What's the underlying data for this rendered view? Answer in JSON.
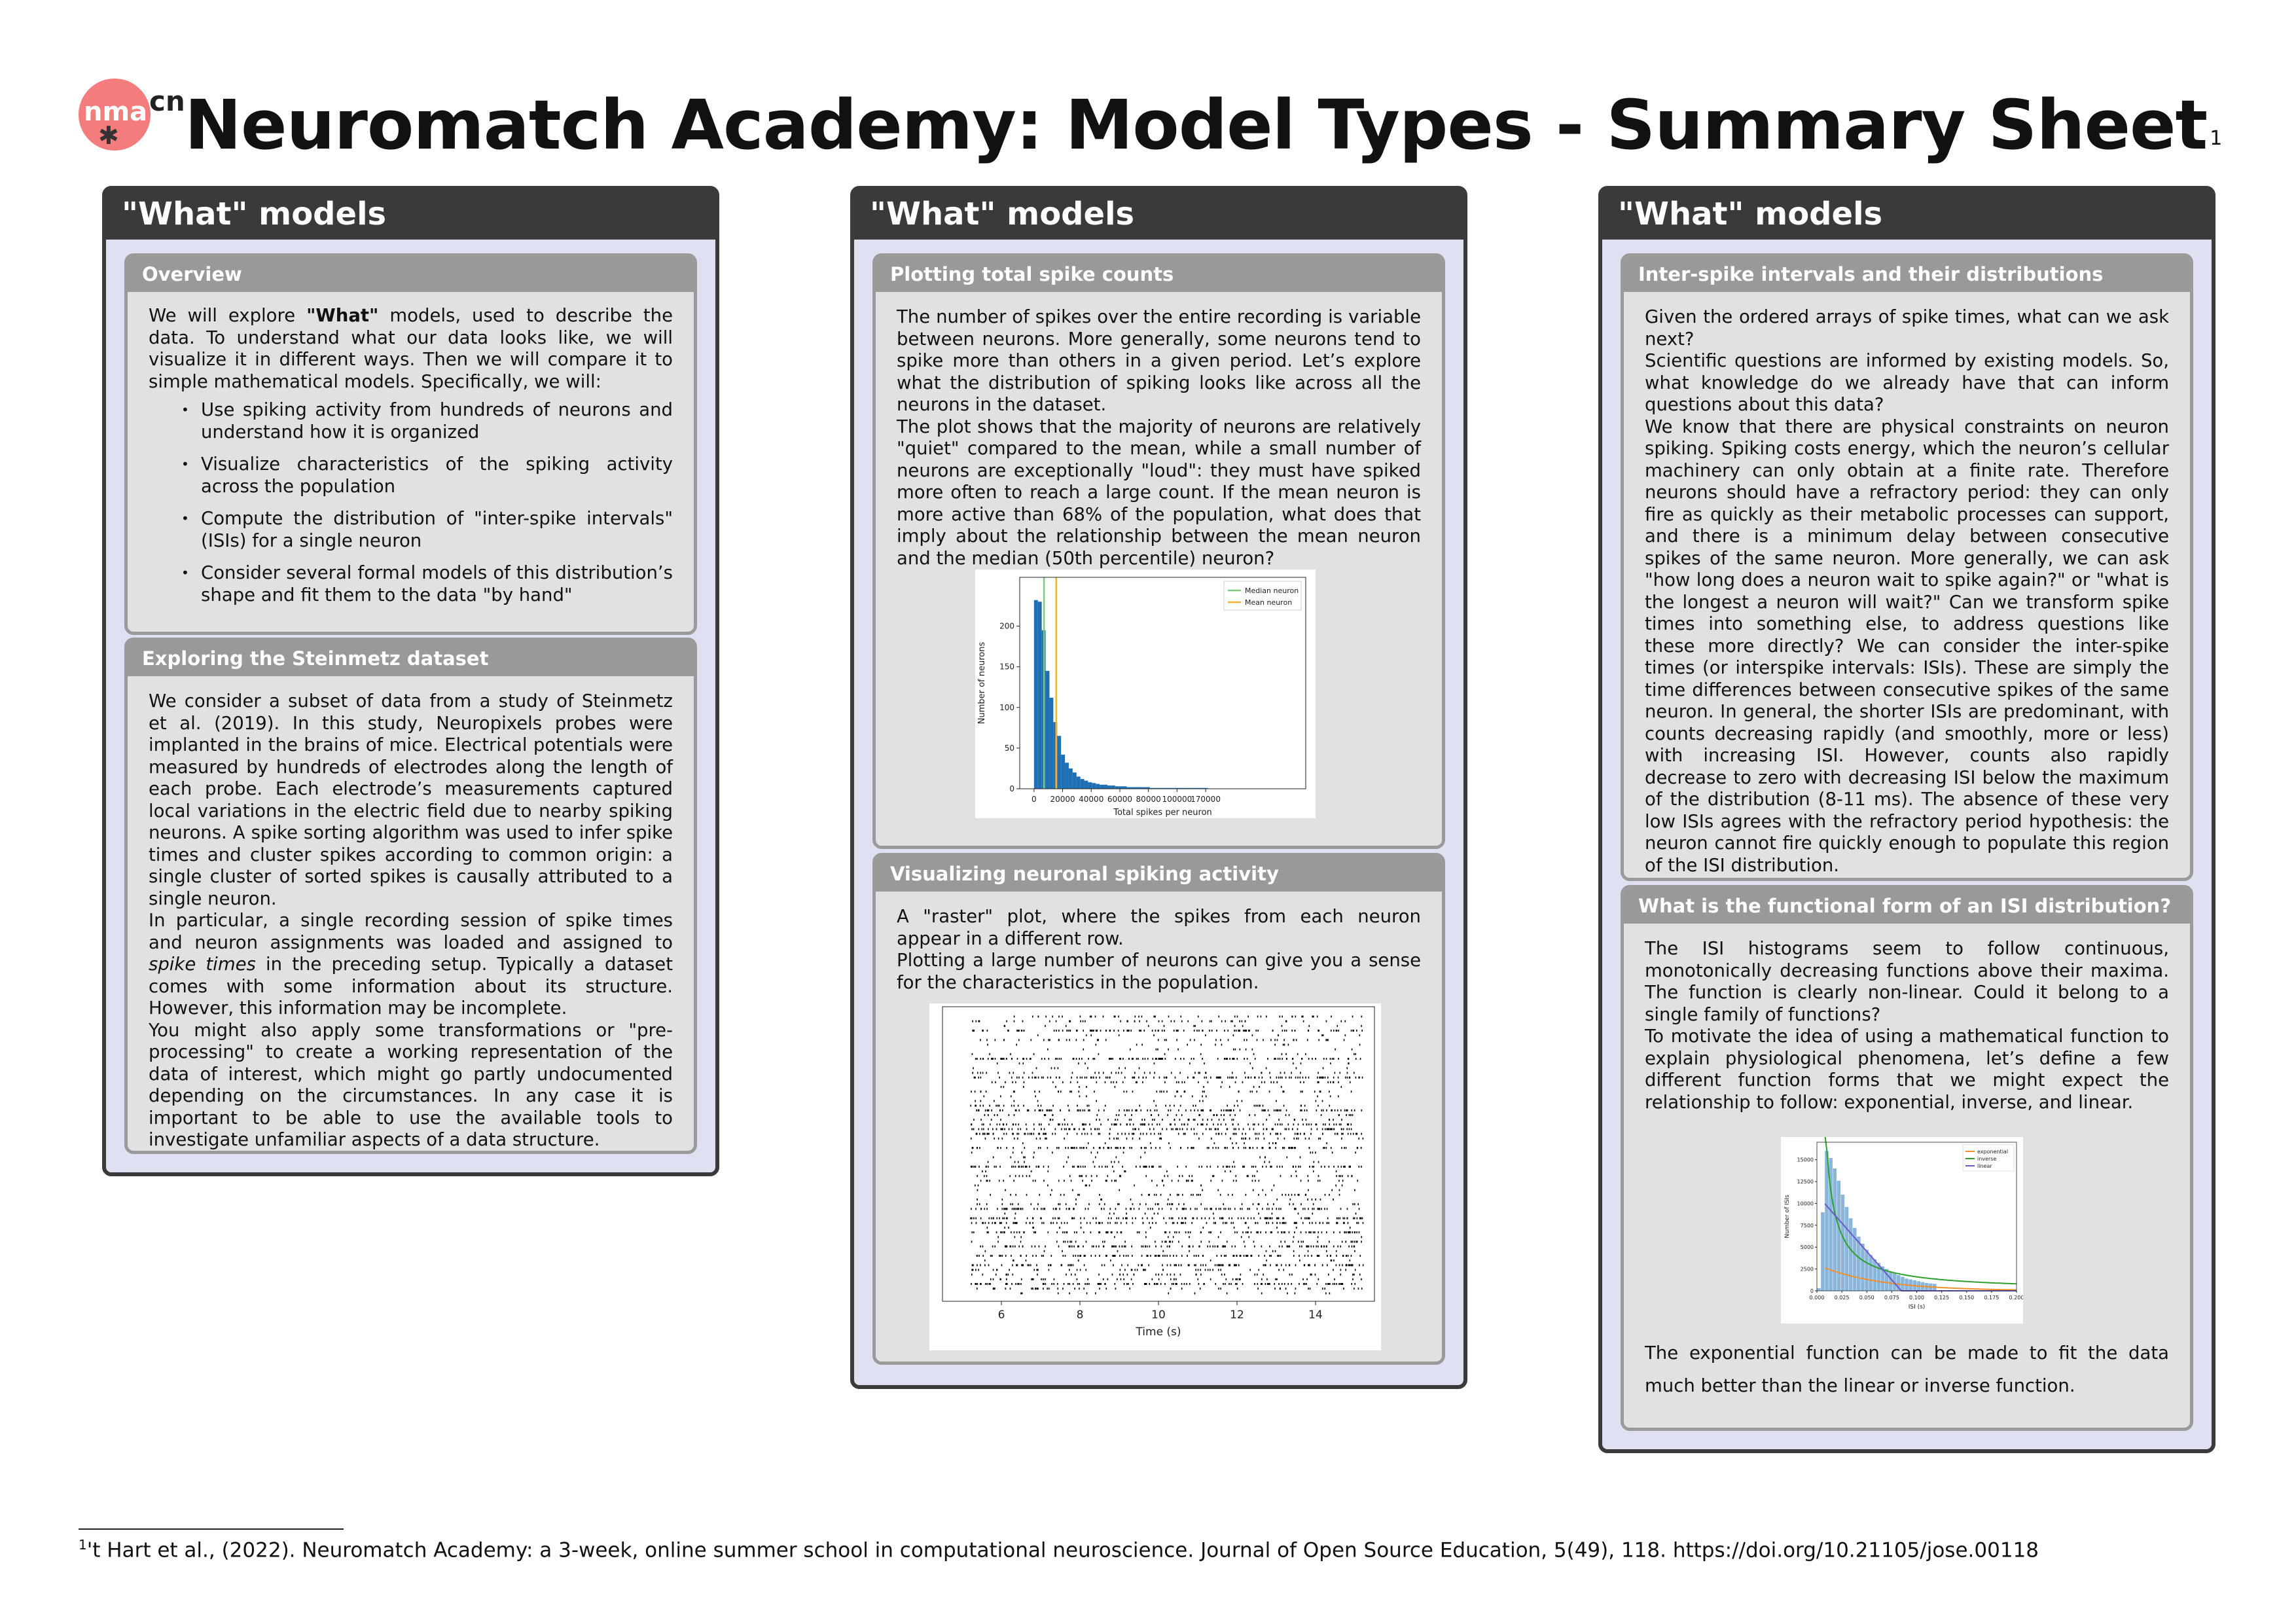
{
  "header": {
    "logo_text": "nma",
    "logo_suffix": "cn",
    "title": "Neuromatch Academy: Model Types - Summary Sheet",
    "title_note": "1"
  },
  "columns": [
    {
      "title": "\"What\" models",
      "boxes": [
        {
          "title": "Overview",
          "intro_pre": "We will explore ",
          "intro_bold": "\"What\"",
          "intro_post": " models, used to describe the data. To understand what our data looks like, we will visualize it in different ways. Then we will compare it to simple mathematical models. Specifically, we will:",
          "items": [
            "Use spiking activity from hundreds of neurons and understand how it is organized",
            "Visualize characteristics of the spiking activity across the population",
            "Compute the distribution of \"inter-spike intervals\" (ISIs) for a single neuron",
            "Consider several formal models of this distribution’s shape and fit them to the data \"by hand\""
          ]
        },
        {
          "title": "Exploring the Steinmetz dataset",
          "p1": "We consider a subset of data from a study of Steinmetz et al. (2019). In this study, Neuropixels probes were implanted in the brains of mice. Electrical potentials were measured by hundreds of electrodes along the length of each probe. Each electrode’s measurements captured local variations in the electric field due to nearby spiking neurons. A spike sorting algorithm was used to infer spike times and cluster spikes according to common origin: a single cluster of sorted spikes is causally attributed to a single neuron.",
          "p2_pre": "In particular, a single recording session of spike times and neuron assignments was loaded and assigned to ",
          "p2_em": "spike times",
          "p2_post": " in the preceding setup. Typically a dataset comes with some information about its structure. However, this information may be incomplete.",
          "p3": "You might also apply some transformations or \"pre-processing\" to create a working representation of the data of interest, which might go partly undocumented depending on the circumstances. In any case it is important to be able to use the available tools to investigate unfamiliar aspects of a data structure."
        }
      ]
    },
    {
      "title": "\"What\" models",
      "boxes": [
        {
          "title": "Plotting total spike counts",
          "p1": "The number of spikes over the entire recording is variable between neurons. More generally, some neurons tend to spike more than others in a given period. Let’s explore what the distribution of spiking looks like across all the neurons in the dataset.",
          "p2": "The plot shows that the majority of neurons are relatively \"quiet\" compared to the mean, while a small number of neurons are exceptionally \"loud\": they must have spiked more often to reach a large count. If the mean neuron is more active than 68% of the population, what does that imply about the relationship between the mean neuron and the median (50th percentile) neuron?"
        },
        {
          "title": "Visualizing neuronal spiking activity",
          "p1": "A \"raster\" plot, where the spikes from each neuron appear in a different row.",
          "p2": "Plotting a large number of neurons can give you a sense for the characteristics in the population."
        }
      ]
    },
    {
      "title": "\"What\" models",
      "boxes": [
        {
          "title": "Inter-spike intervals and their distributions",
          "p1": "Given the ordered arrays of spike times, what can we ask next?",
          "p2": "Scientific questions are informed by existing models. So, what knowledge do we already have that can inform questions about this data?",
          "p3": "We know that there are physical constraints on neuron spiking. Spiking costs energy, which the neuron’s cellular machinery can only obtain at a finite rate. Therefore neurons should have a refractory period: they can only fire as quickly as their metabolic processes can support, and there is a minimum delay between consecutive spikes of the same neuron. More generally, we can ask \"how long does a neuron wait to spike again?\" or \"what is the longest a neuron will wait?\" Can we transform spike times into something else, to address questions like these more directly? We can consider the inter-spike times (or interspike intervals: ISIs). These are simply the time differences between consecutive spikes of the same neuron. In general, the shorter ISIs are predominant, with counts decreasing rapidly (and smoothly, more or less) with increasing ISI. However, counts also rapidly decrease to zero with decreasing ISI below the maximum of the distribution (8-11 ms). The absence of these very low ISIs agrees with the refractory period hypothesis: the neuron cannot fire quickly enough to populate this region of the ISI distribution."
        },
        {
          "title": "What is the functional form of an ISI distribution?",
          "p1": "The ISI histograms seem to follow continuous, monotonically decreasing functions above their maxima. The function is clearly non-linear. Could it belong to a single family of functions?",
          "p2": "To motivate the idea of using a mathematical function to explain physiological phenomena, let’s define a few different function forms that we might expect the relationship to follow: exponential, inverse, and linear.",
          "p3": "The exponential function can be made to fit the data much better than the linear or inverse function."
        }
      ]
    }
  ],
  "chart_data": [
    {
      "type": "bar",
      "xlabel": "Total spikes per neuron",
      "ylabel": "Number of neurons",
      "xlim": [
        -10000,
        190000
      ],
      "ylim": [
        0,
        260
      ],
      "xticks": [
        "0",
        "20000",
        "40000",
        "60000",
        "80000",
        "100000",
        "170000"
      ],
      "yticks": [
        "0",
        "50",
        "100",
        "150",
        "200"
      ],
      "bin_width": 2700,
      "values": [
        232,
        230,
        195,
        145,
        112,
        82,
        65,
        42,
        32,
        25,
        20,
        15,
        12,
        10,
        8,
        7,
        6,
        5,
        5,
        4,
        4,
        3,
        3,
        3,
        2,
        2,
        2,
        2,
        2,
        2,
        1,
        1,
        1,
        1,
        1,
        1,
        1,
        1,
        1,
        1,
        1,
        1,
        1,
        1,
        1
      ],
      "lines": [
        {
          "name": "Median neuron",
          "x": 7000,
          "color": "#7fc97f"
        },
        {
          "name": "Mean neuron",
          "x": 15500,
          "color": "#f2b13a"
        }
      ],
      "bar_color": "#1f6fb4",
      "legend": "top-right"
    },
    {
      "type": "scatter",
      "xlabel": "Time (s)",
      "xlim": [
        4.5,
        15.5
      ],
      "xticks": [
        6,
        8,
        10,
        12,
        14
      ],
      "neurons": 60,
      "color": "#000000"
    },
    {
      "type": "bar",
      "xlabel": "ISI (s)",
      "ylabel": "Number of ISIs",
      "xlim": [
        0,
        0.2
      ],
      "ylim": [
        0,
        17000
      ],
      "xticks": [
        "0.000",
        "0.025",
        "0.050",
        "0.075",
        "0.100",
        "0.125",
        "0.150",
        "0.175",
        "0.200"
      ],
      "yticks": [
        "0",
        "2500",
        "5000",
        "7500",
        "10000",
        "12500",
        "15000",
        "17500"
      ],
      "bin_width": 0.004,
      "values": [
        300,
        9000,
        16000,
        15200,
        14000,
        12600,
        11000,
        9600,
        8300,
        7200,
        6200,
        5400,
        4700,
        4100,
        3600,
        3200,
        2800,
        2500,
        2200,
        2000,
        1800,
        1600,
        1400,
        1300,
        1200,
        1100,
        1000,
        900,
        850,
        800
      ],
      "bar_color": "#8ab6dc",
      "series": [
        {
          "name": "exponential",
          "color": "#f28e2b"
        },
        {
          "name": "inverse",
          "color": "#2ca02c"
        },
        {
          "name": "linear",
          "color": "#6a5acd"
        }
      ],
      "legend": "top-right"
    }
  ],
  "footnote": {
    "mark": "1",
    "text": "'t Hart et al., (2022). Neuromatch Academy: a 3-week, online summer school in computational neuroscience. Journal of Open Source Education, 5(49), 118. https://doi.org/10.21105/jose.00118"
  }
}
